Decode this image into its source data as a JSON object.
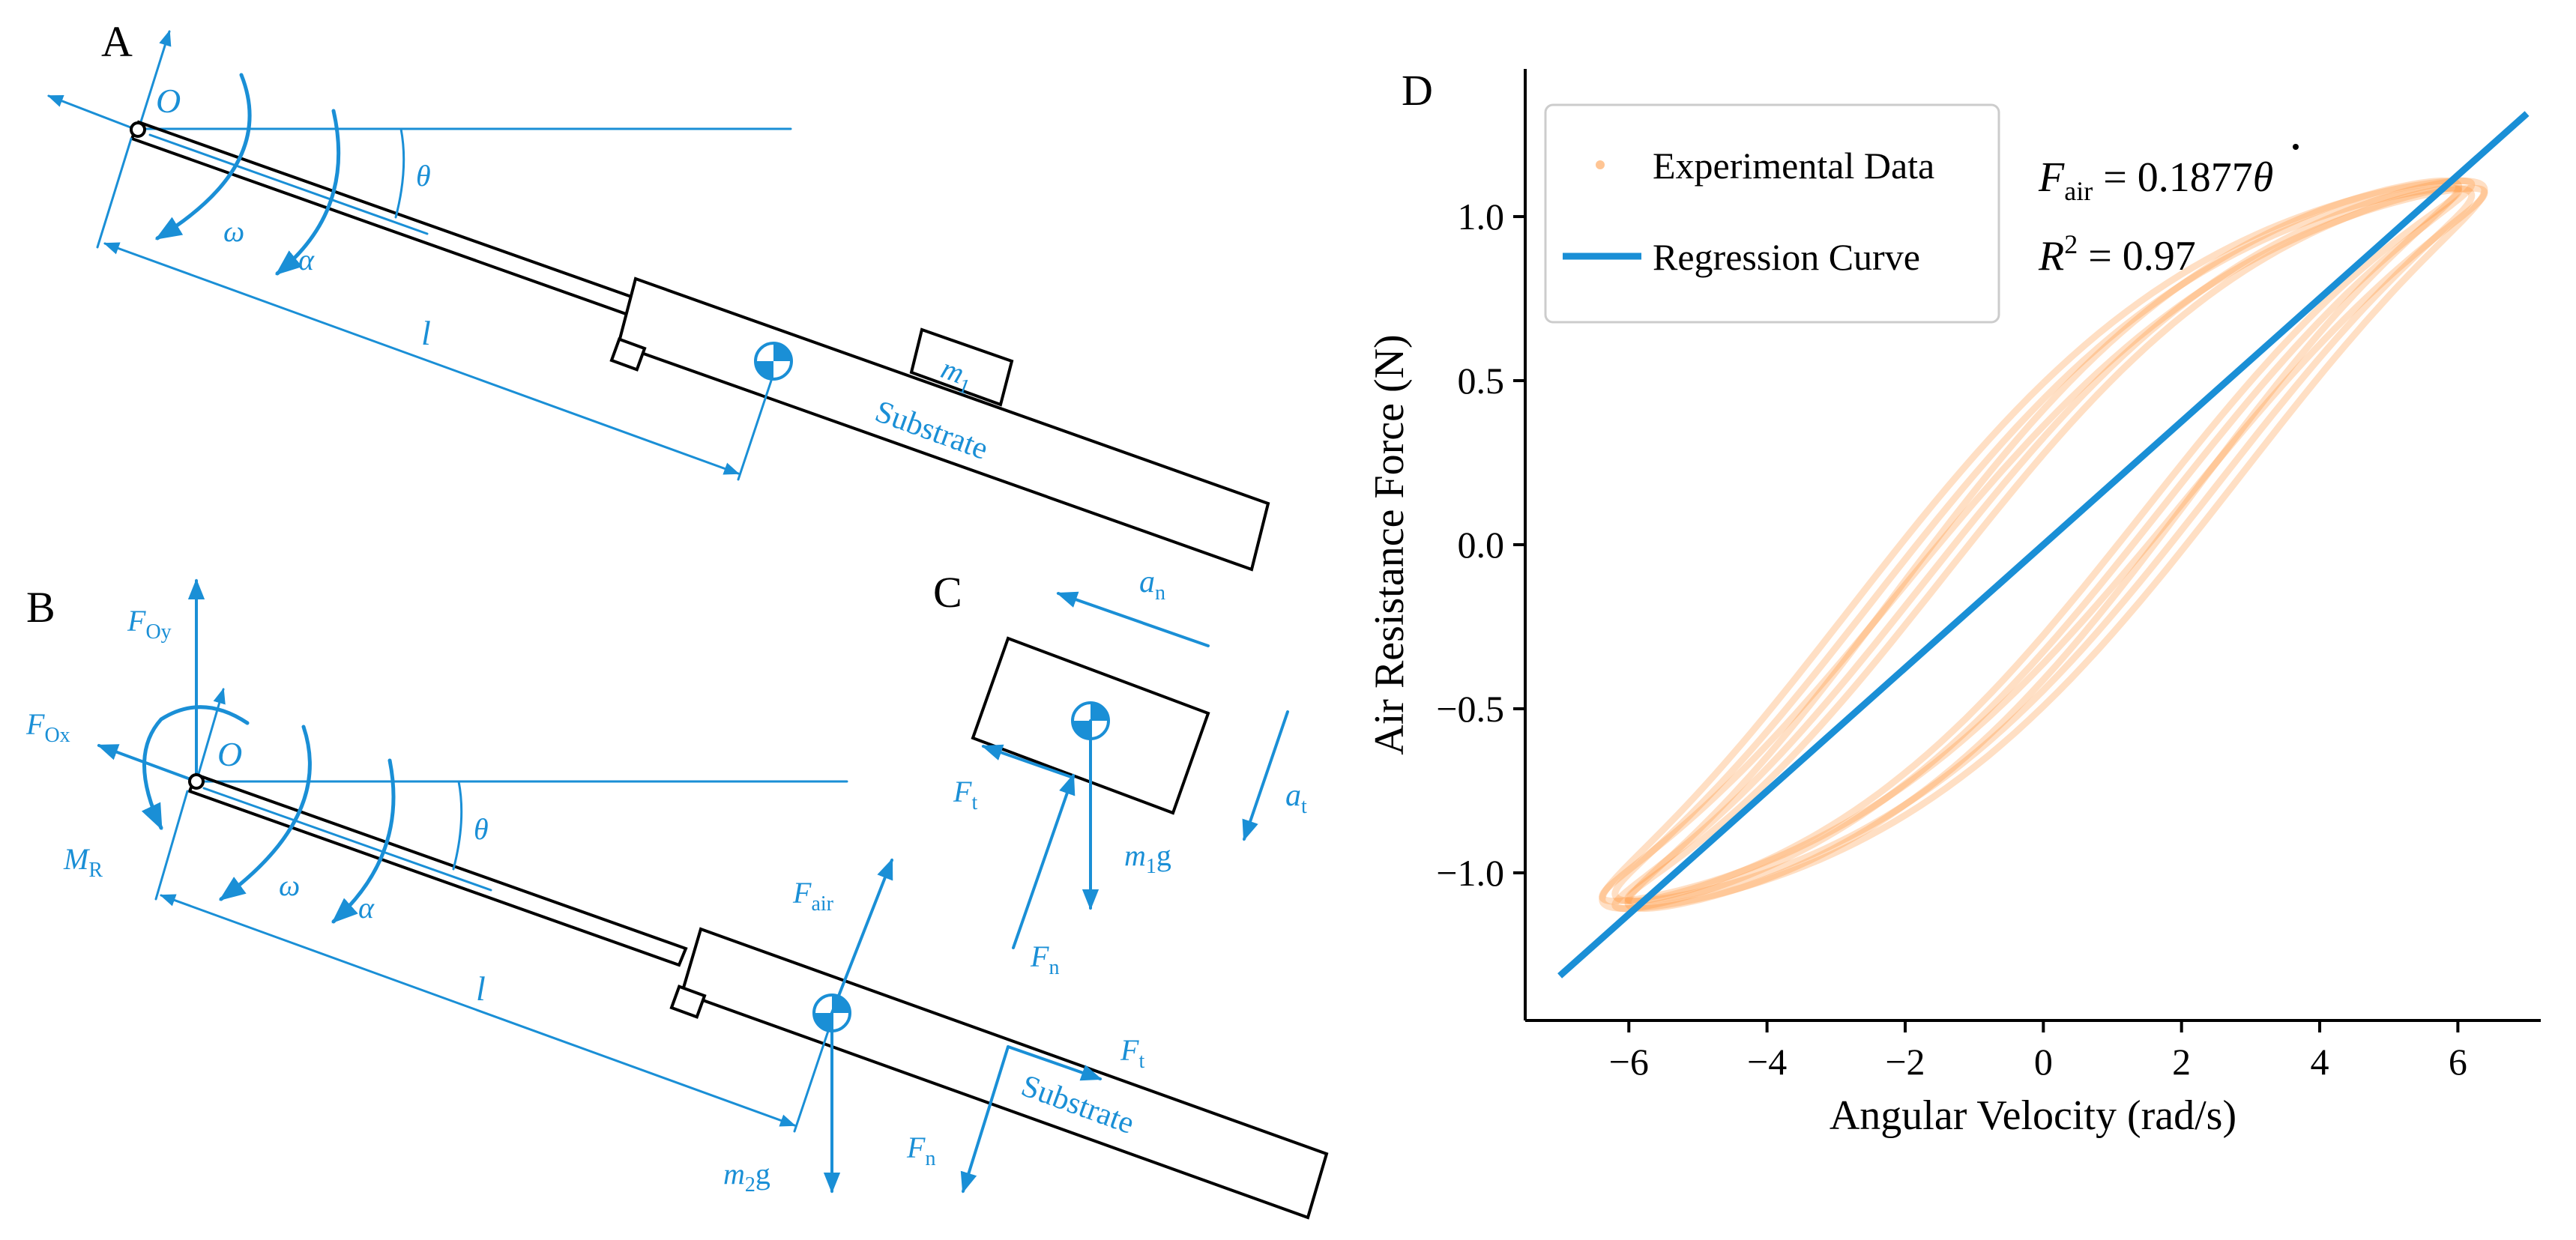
{
  "colors": {
    "blue": "#1a8fd6",
    "orange": "#ff8c2a",
    "black": "#000000"
  },
  "panelA": {
    "label": "A",
    "origin": "O",
    "theta": "θ",
    "omega": "ω",
    "alpha": "α",
    "length": "l",
    "mass": "m",
    "mass_sub": "1",
    "substrate": "Substrate"
  },
  "panelB": {
    "label": "B",
    "origin": "O",
    "theta": "θ",
    "omega": "ω",
    "alpha": "α",
    "length": "l",
    "substrate": "Substrate",
    "F": "F",
    "Oy_sub": "Oy",
    "Ox_sub": "Ox",
    "MR": "M",
    "MR_sub": "R",
    "Fair_sub": "air",
    "Ft_sub": "t",
    "Fn_sub": "n",
    "m2g_m": "m",
    "m2g_sub": "2",
    "m2g_g": "g"
  },
  "panelC": {
    "label": "C",
    "a": "a",
    "an_sub": "n",
    "at_sub": "t",
    "F": "F",
    "Ft_sub": "t",
    "Fn_sub": "n",
    "m1g_m": "m",
    "m1g_sub": "1",
    "m1g_g": "g"
  },
  "panelD": {
    "label": "D",
    "chart_data": {
      "type": "scatter",
      "title": "",
      "xlabel": "Angular Velocity (rad/s)",
      "ylabel": "Air Resistance Force (N)",
      "xlim": [
        -7.5,
        7.2
      ],
      "ylim": [
        -1.45,
        1.45
      ],
      "xticks": [
        -6,
        -4,
        -2,
        0,
        2,
        4,
        6
      ],
      "xtick_labels": [
        "−6",
        "−4",
        "−2",
        "0",
        "2",
        "4",
        "6"
      ],
      "yticks": [
        -1.0,
        -0.5,
        0.0,
        0.5,
        1.0
      ],
      "ytick_labels": [
        "−1.0",
        "−0.5",
        "0.0",
        "0.5",
        "1.0"
      ],
      "legend": [
        "Experimental Data",
        "Regression Curve"
      ],
      "legend_position": "top-left",
      "equation_lhs": "F",
      "equation_sub": "air",
      "equation_rhs": "= 0.1877",
      "equation_var": "θ",
      "r2_lhs": "R",
      "r2_sup": "2",
      "r2_rhs": "= 0.97",
      "series": [
        {
          "name": "Regression Curve",
          "slope": 0.1877,
          "x": [
            -7,
            7
          ],
          "y": [
            -1.314,
            1.314
          ]
        },
        {
          "name": "Experimental Data",
          "amplitude_x": 6.2,
          "amplitude_y": 1.12,
          "loops": 6
        }
      ]
    }
  }
}
